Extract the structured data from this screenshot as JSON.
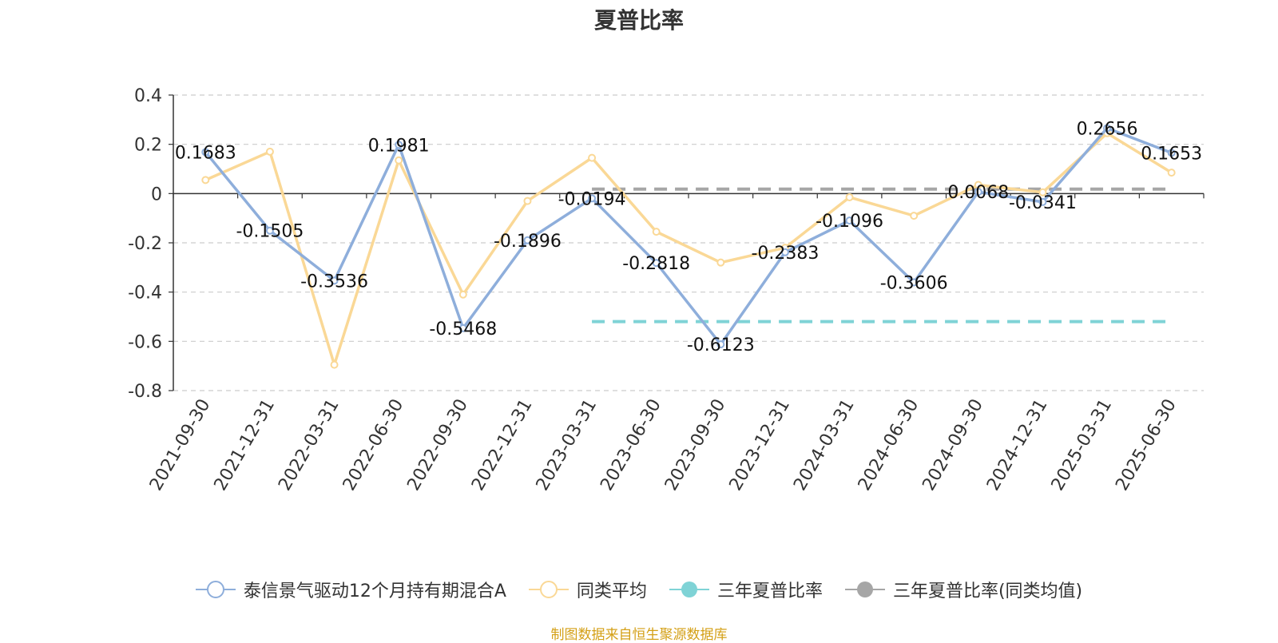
{
  "chart_data": {
    "type": "line",
    "title": "夏普比率",
    "categories": [
      "2021-09-30",
      "2021-12-31",
      "2022-03-31",
      "2022-06-30",
      "2022-09-30",
      "2022-12-31",
      "2023-03-31",
      "2023-06-30",
      "2023-09-30",
      "2023-12-31",
      "2024-03-31",
      "2024-06-30",
      "2024-09-30",
      "2024-12-31",
      "2025-03-31",
      "2025-06-30"
    ],
    "yticks": [
      "0.4",
      "0.2",
      "0",
      "-0.2",
      "-0.4",
      "-0.6",
      "-0.8"
    ],
    "ylim": [
      -0.8,
      0.4
    ],
    "grid": true,
    "legend_position": "bottom",
    "series": [
      {
        "name": "泰信景气驱动12个月持有期混合A",
        "color": "#8eaedb",
        "values": [
          0.1683,
          -0.1505,
          -0.3536,
          0.1981,
          -0.5468,
          -0.1896,
          -0.0194,
          -0.2818,
          -0.6123,
          -0.2383,
          -0.1096,
          -0.3606,
          0.0068,
          -0.0341,
          0.2656,
          0.1653
        ],
        "labels": [
          "0.1683",
          "-0.1505",
          "-0.3536",
          "0.1981",
          "-0.5468",
          "-0.1896",
          "-0.0194",
          "-0.2818",
          "-0.6123",
          "-0.2383",
          "-0.1096",
          "-0.3606",
          "0.0068",
          "-0.0341",
          "0.2656",
          "0.1653"
        ]
      },
      {
        "name": "同类平均",
        "color": "#fad896",
        "values": [
          0.055,
          0.17,
          -0.695,
          0.135,
          -0.41,
          -0.03,
          0.145,
          -0.155,
          -0.28,
          -0.22,
          -0.015,
          -0.09,
          0.035,
          0.005,
          0.245,
          0.085
        ]
      },
      {
        "name": "三年夏普比率",
        "color": "#7fd3d6",
        "type": "reference-line",
        "value": -0.52,
        "from": "2023-03-31",
        "to": "2025-06-30"
      },
      {
        "name": "三年夏普比率(同类均值)",
        "color": "#a6a6a6",
        "type": "reference-line",
        "value": 0.018,
        "from": "2023-03-31",
        "to": "2025-06-30"
      }
    ]
  },
  "source_note": "制图数据来自恒生聚源数据库"
}
